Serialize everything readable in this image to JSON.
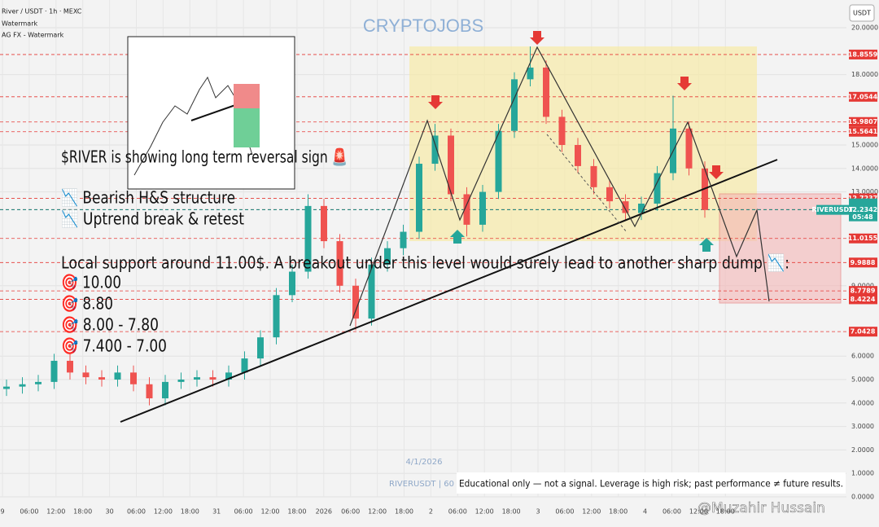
{
  "chart_data": {
    "type": "candlestick",
    "title": "River / USDT · 1h · MEXC",
    "subtitle": "Watermark",
    "indicator": "AG FX - Watermark",
    "watermark": "CRYPTOJOBS",
    "currency": "USDT",
    "symbol_tag": "RIVERUSDT",
    "countdown": "05:48",
    "date_label": "4/1/2026",
    "symbol_watermark": "RIVERUSDT | 60",
    "up_color": "#26a69a",
    "down_color": "#ef5350",
    "open": [
      4.6,
      4.7,
      4.8,
      4.9,
      5.8,
      5.3,
      5.1,
      5.0,
      5.3,
      4.8,
      4.2,
      4.9,
      5.0,
      5.1,
      5.0,
      5.3,
      5.9,
      6.8,
      8.6,
      9.6,
      12.4,
      10.9,
      9.0,
      7.6,
      9.9,
      10.6,
      11.3,
      14.2,
      15.4,
      12.9,
      11.6,
      13.0,
      15.6,
      17.8,
      18.3,
      16.2,
      15.0,
      14.1,
      13.2,
      12.6,
      12.1,
      12.5,
      13.8,
      15.7,
      14.0
    ],
    "high": [
      5.0,
      5.1,
      5.2,
      6.1,
      6.1,
      5.6,
      5.4,
      5.6,
      5.6,
      5.1,
      5.2,
      5.3,
      5.4,
      5.4,
      5.6,
      6.2,
      7.1,
      8.9,
      9.9,
      12.9,
      12.7,
      11.2,
      9.3,
      10.2,
      10.9,
      11.6,
      14.5,
      15.9,
      15.7,
      13.2,
      13.3,
      15.9,
      18.1,
      19.2,
      18.6,
      16.5,
      15.3,
      14.4,
      13.5,
      12.9,
      12.8,
      14.1,
      17.1,
      16.0,
      14.3
    ],
    "low": [
      4.3,
      4.4,
      4.5,
      4.6,
      5.0,
      4.8,
      4.7,
      4.7,
      4.5,
      3.9,
      3.9,
      4.6,
      4.7,
      4.7,
      4.7,
      5.0,
      5.6,
      6.5,
      8.3,
      9.3,
      10.6,
      8.7,
      7.1,
      7.3,
      9.6,
      10.3,
      11.0,
      13.9,
      12.6,
      11.1,
      11.3,
      12.7,
      15.3,
      17.5,
      15.9,
      14.7,
      13.8,
      12.9,
      12.3,
      11.8,
      11.8,
      12.2,
      13.5,
      13.7,
      11.9
    ],
    "close": [
      4.7,
      4.8,
      4.9,
      5.8,
      5.3,
      5.1,
      5.0,
      5.3,
      4.8,
      4.2,
      4.9,
      5.0,
      5.1,
      5.0,
      5.3,
      5.9,
      6.8,
      8.6,
      9.6,
      12.4,
      10.9,
      9.0,
      7.6,
      9.9,
      10.6,
      11.3,
      14.2,
      15.4,
      12.9,
      11.6,
      13.0,
      15.6,
      17.8,
      18.3,
      16.2,
      15.0,
      14.1,
      13.2,
      12.6,
      12.1,
      12.5,
      13.8,
      15.7,
      14.0,
      12.23
    ],
    "ylim": [
      0,
      21.18
    ],
    "yticks": [
      {
        "value": 0,
        "label": "0.0000"
      },
      {
        "value": 1,
        "label": "1.0000"
      },
      {
        "value": 2,
        "label": "2.0000"
      },
      {
        "value": 3,
        "label": "3.0000"
      },
      {
        "value": 4,
        "label": "4.0000"
      },
      {
        "value": 5,
        "label": "5.0000"
      },
      {
        "value": 6,
        "label": "6.0000"
      },
      {
        "value": 9,
        "label": "9.0000"
      },
      {
        "value": 13,
        "label": "13.0000"
      },
      {
        "value": 14,
        "label": "14.0000"
      },
      {
        "value": 15,
        "label": "15.0000"
      },
      {
        "value": 18,
        "label": "18.0000"
      },
      {
        "value": 20,
        "label": "20.0000"
      }
    ],
    "levels": [
      {
        "value": 18.8559,
        "color": "#e53935"
      },
      {
        "value": 17.0544,
        "color": "#e53935"
      },
      {
        "value": 15.9807,
        "color": "#e53935"
      },
      {
        "value": 15.5641,
        "color": "#e53935"
      },
      {
        "value": 12.7237,
        "color": "#e53935"
      },
      {
        "value": 12.2455,
        "color": "#333333"
      },
      {
        "value": 12.2342,
        "color": "#26a69a"
      },
      {
        "value": 11.0155,
        "color": "#e53935"
      },
      {
        "value": 9.9888,
        "color": "#e53935"
      },
      {
        "value": 8.7789,
        "color": "#e53935"
      },
      {
        "value": 8.4224,
        "color": "#e53935"
      },
      {
        "value": 7.0428,
        "color": "#e53935"
      }
    ],
    "x_axis_labels": [
      "9",
      "06:00",
      "12:00",
      "18:00",
      "30",
      "06:00",
      "12:00",
      "18:00",
      "31",
      "06:00",
      "12:00",
      "18:00",
      "2026",
      "06:00",
      "12:00",
      "18:00",
      "2",
      "06:00",
      "12:00",
      "18:00",
      "3",
      "06:00",
      "12:00",
      "18:00",
      "4",
      "06:00",
      "12:00",
      "18:00"
    ]
  },
  "post": {
    "headline": "$RIVER is showing long term reversal sign 🚨",
    "points": [
      "📉 Bearish H&S structure",
      "📉 Uptrend break & retest"
    ],
    "support": "Local support around 11.00$.  A breakout under this level would surely lead to another sharp dump 📉:",
    "targets": [
      "🎯 10.00",
      "🎯 8.80",
      "🎯 8.00 - 7.80",
      "🎯 7.400 - 7.00"
    ],
    "disclaimer": "Educational only — not a signal. Leverage is high risk; past performance ≠ future results.",
    "author": "@Muzahir Hussain"
  }
}
